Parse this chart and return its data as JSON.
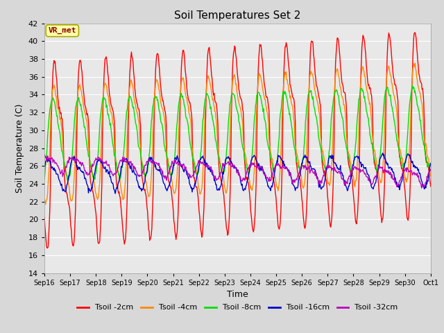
{
  "title": "Soil Temperatures Set 2",
  "xlabel": "Time",
  "ylabel": "Soil Temperature (C)",
  "ylim": [
    14,
    42
  ],
  "yticks": [
    14,
    16,
    18,
    20,
    22,
    24,
    26,
    28,
    30,
    32,
    34,
    36,
    38,
    40,
    42
  ],
  "bg_color": "#d8d8d8",
  "plot_bg_color": "#e8e8e8",
  "annotation_text": "VR_met",
  "annotation_bg": "#ffffaa",
  "annotation_border": "#aaaa00",
  "series_colors": {
    "Tsoil -2cm": "#ff0000",
    "Tsoil -4cm": "#ff8800",
    "Tsoil -8cm": "#00dd00",
    "Tsoil -16cm": "#0000cc",
    "Tsoil -32cm": "#bb00bb"
  },
  "x_tick_labels": [
    "Sep 16",
    "Sep 17",
    "Sep 18",
    "Sep 19",
    "Sep 20",
    "Sep 21",
    "Sep 22",
    "Sep 23",
    "Sep 24",
    "Sep 25",
    "Sep 26",
    "Sep 27",
    "Sep 28",
    "Sep 29",
    "Sep 30",
    "Oct 1"
  ],
  "n_days": 15
}
